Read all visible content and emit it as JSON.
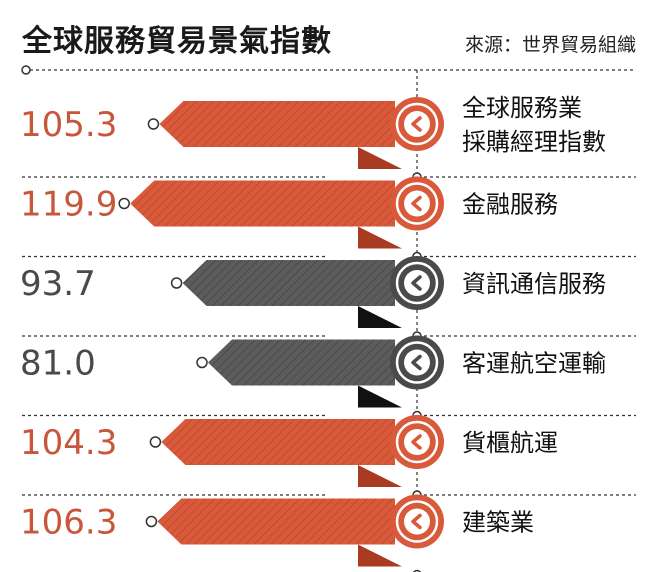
{
  "title": "全球服務貿易景氣指數",
  "source": "來源：世界貿易組織",
  "colors": {
    "positive": "#d9593b",
    "negative": "#595959",
    "pos_text": "#c8563a",
    "neg_text": "#4a4a4a"
  },
  "chart_data": {
    "type": "bar",
    "title": "全球服務貿易景氣指數",
    "baseline": 100,
    "categories": [
      [
        "全球服務業",
        "採購經理指數"
      ],
      [
        "金融服務"
      ],
      [
        "資訊通信服務"
      ],
      [
        "客運航空運輸"
      ],
      [
        "貨櫃航運"
      ],
      [
        "建築業"
      ]
    ],
    "values": [
      105.3,
      119.9,
      93.7,
      81.0,
      104.3,
      106.3
    ],
    "value_labels": [
      "105.3",
      "119.9",
      "93.7",
      "81.0",
      "104.3",
      "106.3"
    ]
  }
}
